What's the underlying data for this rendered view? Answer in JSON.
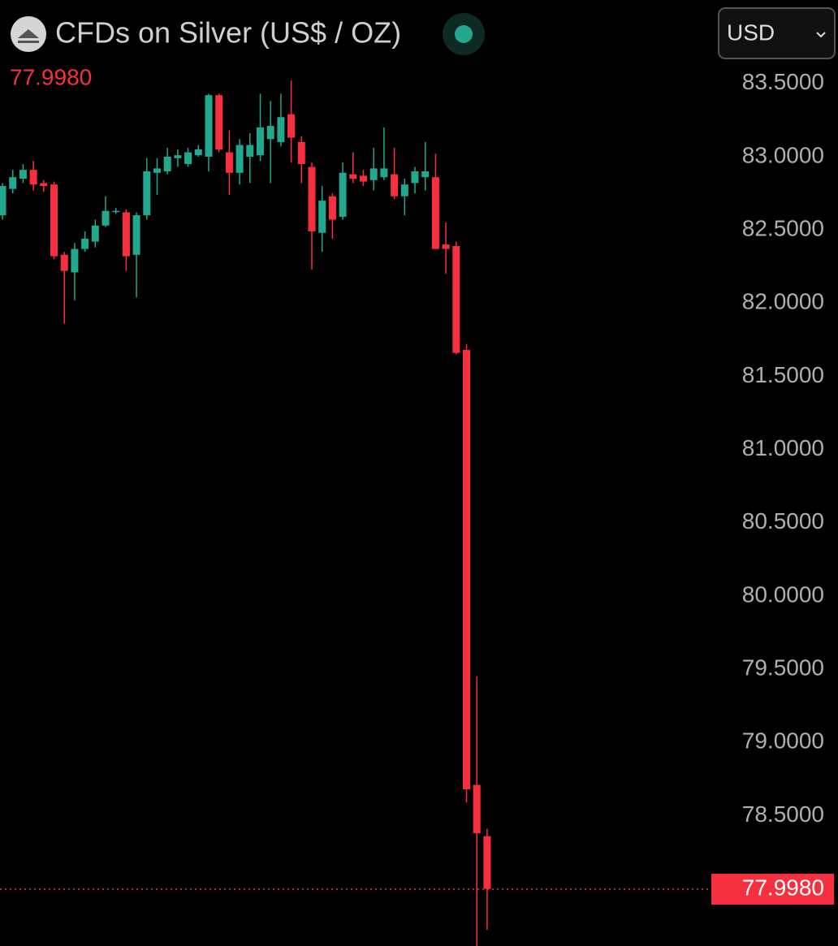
{
  "chart_data": {
    "type": "candlestick",
    "title": "CFDs on Silver (US$ / OZ)",
    "currency": "USD",
    "last_price": {
      "value": 77.998,
      "label": "77.9980"
    },
    "up_color": "#22a88e",
    "down_color": "#f7303f",
    "ylim": [
      77.61,
      84.07
    ],
    "yticks": [
      {
        "value": 83.5,
        "label": "83.5000"
      },
      {
        "value": 83,
        "label": "83.0000"
      },
      {
        "value": 82.5,
        "label": "82.5000"
      },
      {
        "value": 82,
        "label": "82.0000"
      },
      {
        "value": 81.5,
        "label": "81.5000"
      },
      {
        "value": 81,
        "label": "81.0000"
      },
      {
        "value": 80.5,
        "label": "80.5000"
      },
      {
        "value": 80,
        "label": "80.0000"
      },
      {
        "value": 79.5,
        "label": "79.5000"
      },
      {
        "value": 79,
        "label": "79.0000"
      },
      {
        "value": 78.5,
        "label": "78.5000"
      }
    ],
    "open": [
      82.6,
      82.78,
      82.85,
      82.91,
      82.82,
      82.81,
      82.33,
      82.21,
      82.37,
      82.42,
      82.53,
      82.63,
      82.62,
      82.33,
      82.6,
      82.89,
      82.9,
      82.99,
      82.95,
      83.01,
      83.0,
      83.42,
      83.03,
      82.89,
      83.0,
      83.01,
      83.12,
      83.1,
      83.29,
      83.1,
      82.93,
      82.48,
      82.73,
      82.59,
      82.88,
      82.87,
      82.84,
      82.86,
      82.88,
      82.73,
      82.82,
      82.86,
      82.86,
      82.4,
      82.39,
      81.68,
      78.71,
      78.36
    ],
    "high": [
      82.82,
      82.91,
      82.95,
      82.97,
      82.84,
      82.83,
      82.35,
      82.41,
      82.49,
      82.57,
      82.73,
      82.65,
      82.64,
      82.62,
      82.99,
      82.99,
      83.06,
      83.05,
      83.06,
      83.08,
      83.43,
      83.43,
      83.18,
      83.12,
      83.16,
      83.43,
      83.38,
      83.43,
      83.52,
      83.14,
      82.96,
      82.8,
      82.75,
      82.96,
      83.03,
      82.91,
      83.06,
      83.2,
      83.06,
      82.85,
      82.93,
      83.1,
      83.02,
      82.55,
      82.42,
      81.72,
      79.45,
      78.41
    ],
    "low": [
      82.57,
      82.75,
      82.82,
      82.77,
      82.76,
      82.3,
      81.86,
      82.02,
      82.35,
      82.38,
      82.52,
      82.61,
      82.22,
      82.04,
      82.57,
      82.74,
      82.88,
      82.93,
      82.93,
      83.0,
      82.9,
      83.03,
      82.74,
      82.81,
      82.82,
      82.97,
      82.82,
      83.07,
      82.96,
      82.82,
      82.23,
      82.35,
      82.44,
      82.57,
      82.82,
      82.8,
      82.77,
      82.84,
      82.71,
      82.6,
      82.75,
      82.77,
      82.37,
      82.2,
      81.65,
      78.59,
      77.61,
      77.72
    ],
    "close": [
      82.8,
      82.86,
      82.91,
      82.81,
      82.8,
      82.32,
      82.22,
      82.37,
      82.44,
      82.53,
      82.63,
      82.63,
      82.32,
      82.6,
      82.9,
      82.92,
      83.0,
      83.01,
      83.03,
      83.05,
      83.42,
      83.05,
      82.89,
      83.08,
      83.08,
      83.2,
      83.21,
      83.27,
      83.13,
      82.95,
      82.49,
      82.7,
      82.57,
      82.89,
      82.85,
      82.83,
      82.92,
      82.92,
      82.73,
      82.81,
      82.9,
      82.9,
      82.37,
      82.37,
      81.66,
      78.68,
      78.38,
      78.0
    ]
  }
}
